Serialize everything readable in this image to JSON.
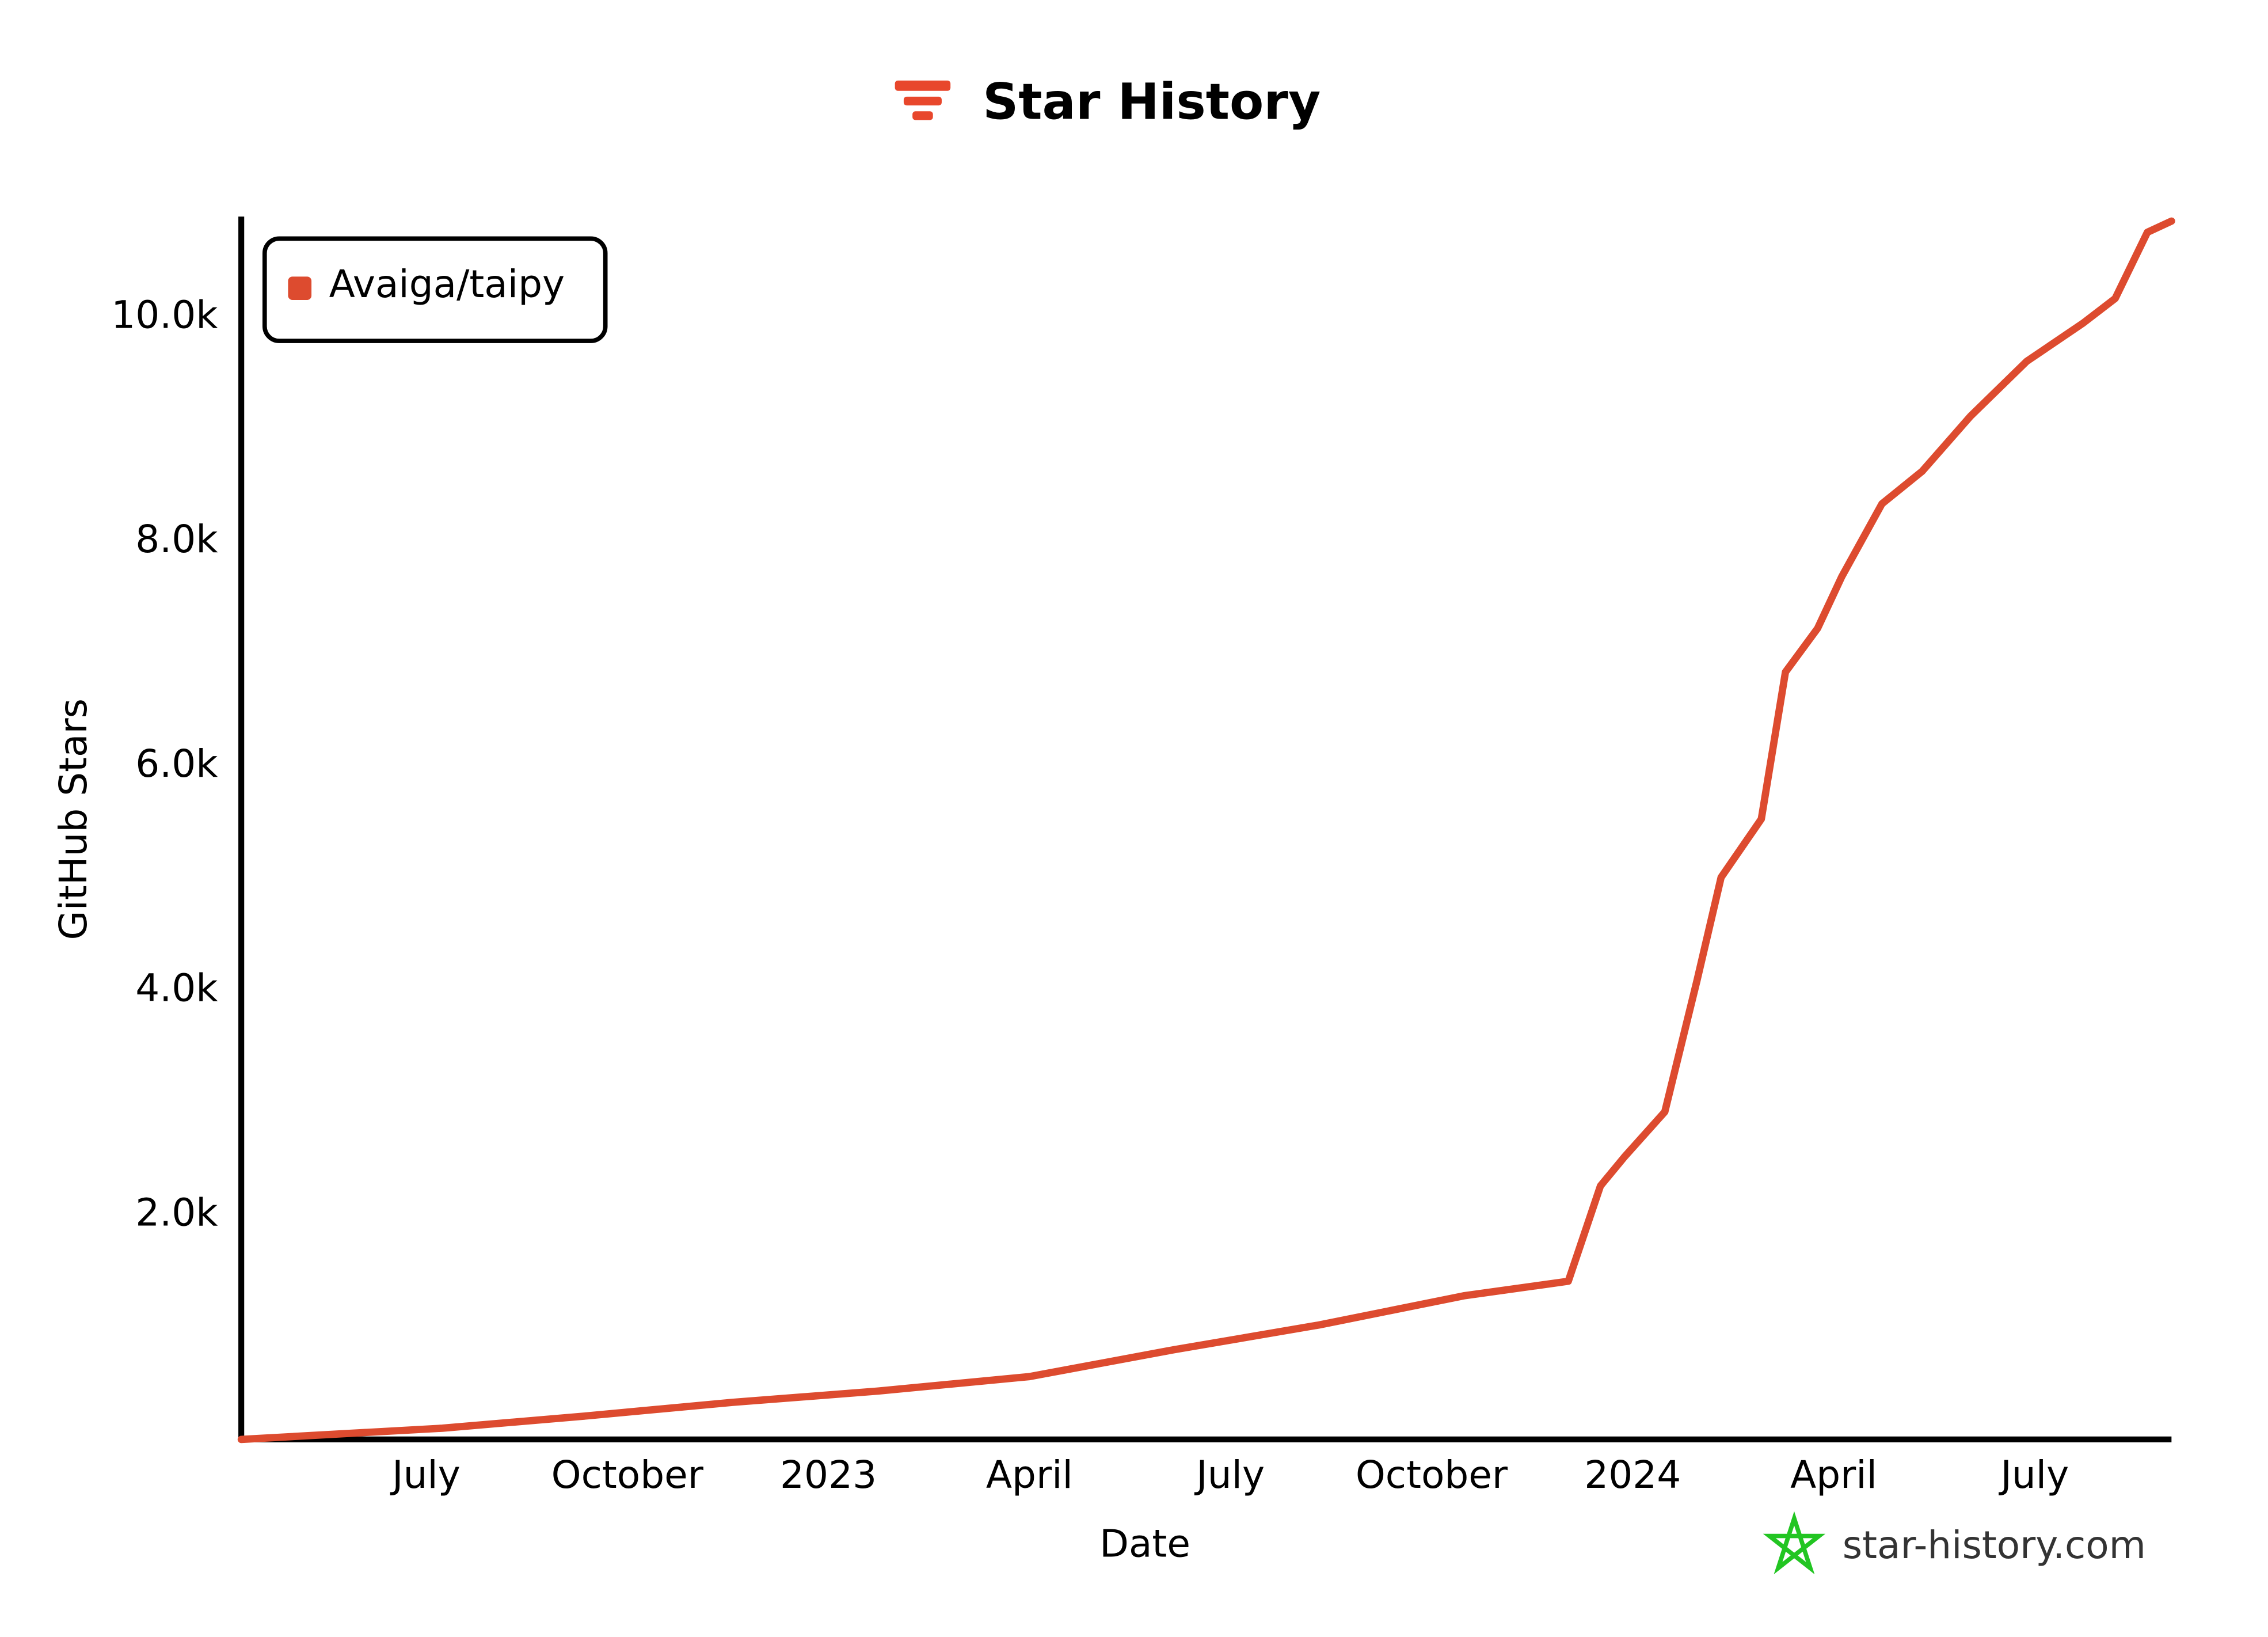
{
  "chart_data": {
    "type": "line",
    "title": "Star History",
    "xlabel": "Date",
    "ylabel": "GitHub Stars",
    "watermark": "star-history.com",
    "legend": "top-left",
    "series": [
      {
        "name": "Avaiga/taipy",
        "color": "#dd4b2f",
        "x": [
          2022.27,
          2022.52,
          2022.7,
          2022.88,
          2023.06,
          2023.25,
          2023.43,
          2023.61,
          2023.79,
          2023.92,
          2023.96,
          2023.99,
          2024.04,
          2024.08,
          2024.11,
          2024.16,
          2024.19,
          2024.23,
          2024.26,
          2024.31,
          2024.36,
          2024.42,
          2024.49,
          2024.56,
          2024.6,
          2024.64,
          2024.67
        ],
        "values": [
          0,
          100,
          210,
          330,
          430,
          560,
          800,
          1020,
          1280,
          1410,
          2260,
          2520,
          2920,
          4090,
          5010,
          5530,
          6840,
          7230,
          7690,
          8340,
          8630,
          9120,
          9610,
          9950,
          10170,
          10760,
          10860
        ]
      }
    ],
    "xlim": [
      2022.27,
      2024.67
    ],
    "xticks": [
      {
        "value": 2022.5,
        "label": "July"
      },
      {
        "value": 2022.75,
        "label": "October"
      },
      2023,
      {
        "value": 2023.25,
        "label": "April"
      },
      {
        "value": 2023.5,
        "label": "July"
      },
      {
        "value": 2023.75,
        "label": "October"
      },
      2024,
      {
        "value": 2024.25,
        "label": "April"
      },
      {
        "value": 2024.5,
        "label": "July"
      }
    ],
    "ylim": [
      0,
      10900
    ],
    "yticks": [
      {
        "value": 2000,
        "label": "2.0k"
      },
      {
        "value": 4000,
        "label": "4.0k"
      },
      {
        "value": 6000,
        "label": "6.0k"
      },
      {
        "value": 8000,
        "label": "8.0k"
      },
      {
        "value": 10000,
        "label": "10.0k"
      }
    ],
    "grid": false
  }
}
